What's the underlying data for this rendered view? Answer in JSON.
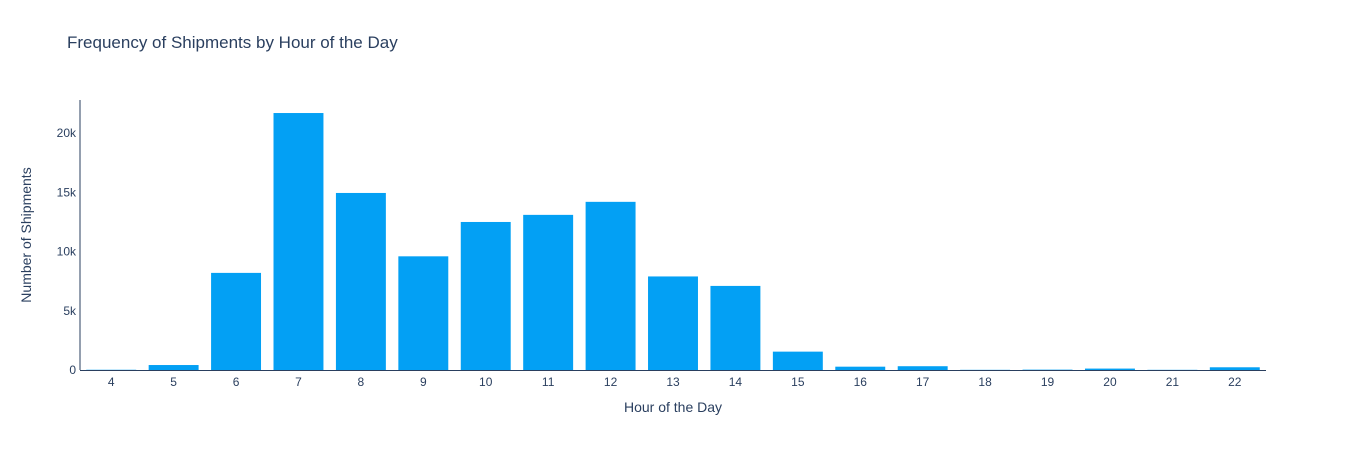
{
  "chart_data": {
    "type": "bar",
    "title": "Frequency of Shipments by Hour of the Day",
    "xlabel": "Hour of the Day",
    "ylabel": "Number of Shipments",
    "categories": [
      "4",
      "5",
      "6",
      "7",
      "8",
      "9",
      "10",
      "11",
      "12",
      "13",
      "14",
      "15",
      "16",
      "17",
      "18",
      "19",
      "20",
      "21",
      "22"
    ],
    "values": [
      20,
      420,
      8200,
      21700,
      14950,
      9600,
      12500,
      13100,
      14200,
      7900,
      7100,
      1550,
      280,
      320,
      15,
      30,
      120,
      15,
      230
    ],
    "ylim": [
      0,
      22800
    ],
    "yticks": [
      0,
      5000,
      10000,
      15000,
      20000
    ],
    "ytick_labels": [
      "0",
      "5k",
      "10k",
      "15k",
      "20k"
    ],
    "bar_color": "#03a0f4",
    "grid": false,
    "legend": "none"
  }
}
